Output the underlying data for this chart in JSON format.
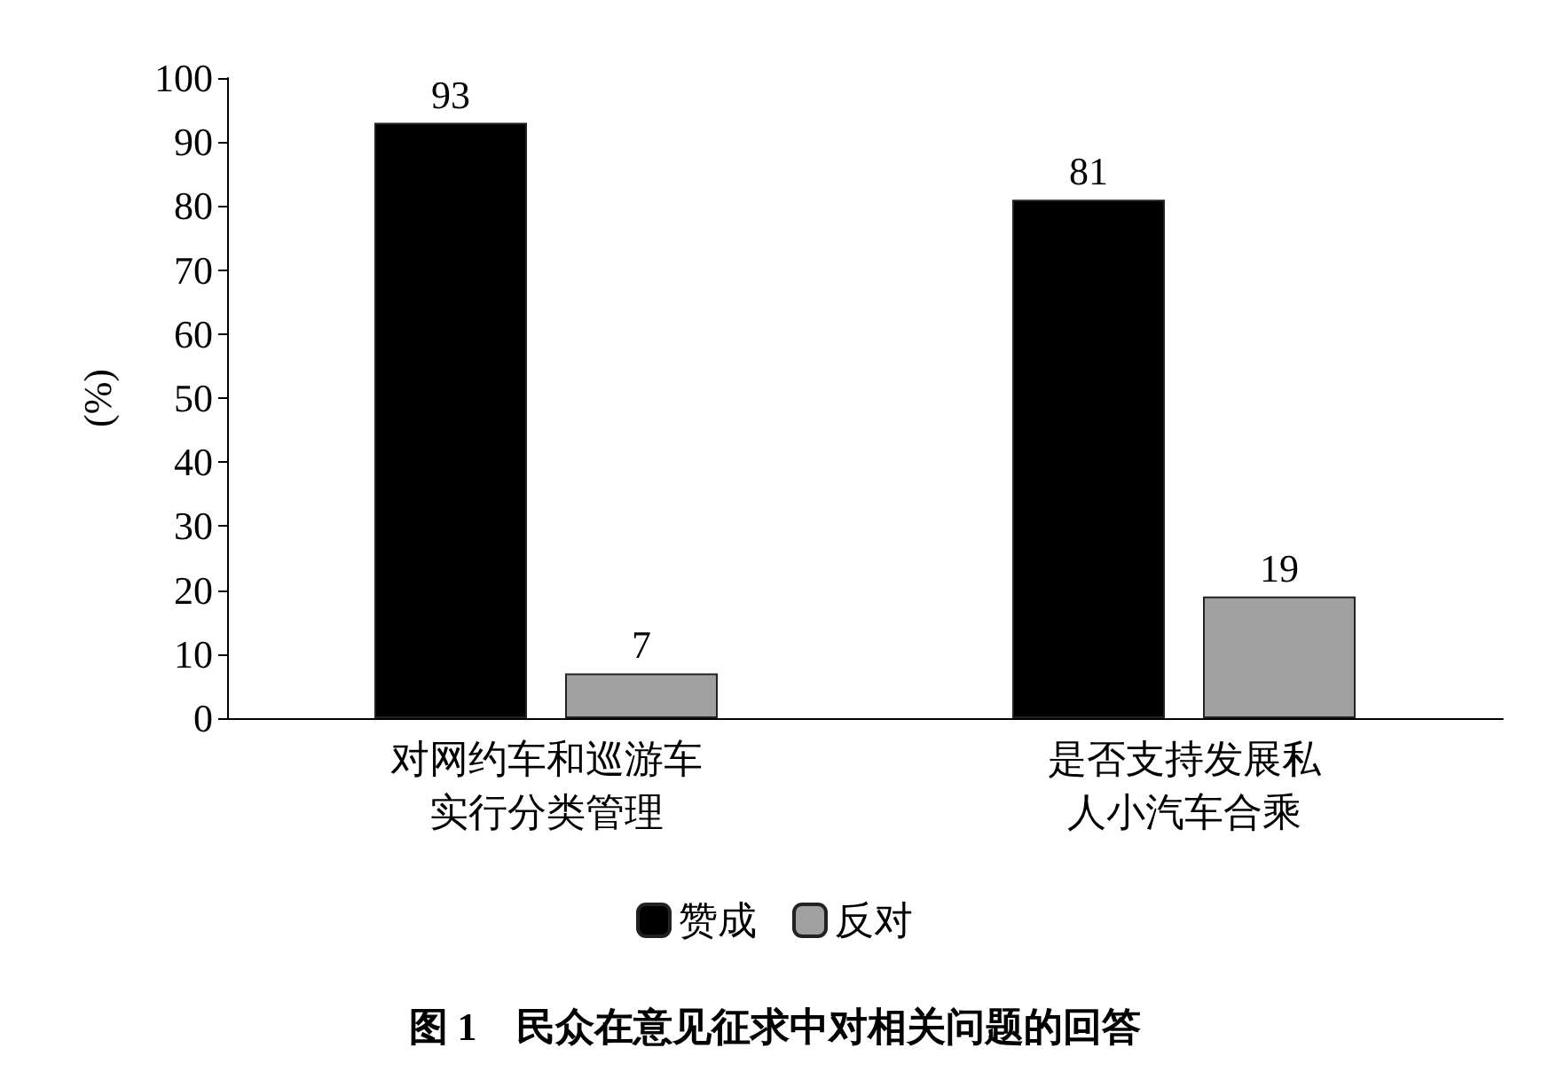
{
  "chart_data": {
    "type": "bar",
    "title": "图 1    民众在意见征求中对相关问题的回答",
    "categories": [
      "对网约车和巡游车实行分类管理",
      "是否支持发展私人小汽车合乘"
    ],
    "series": [
      {
        "name": "赞成",
        "color": "#000000",
        "values": [
          93,
          81
        ]
      },
      {
        "name": "反对",
        "color": "#a0a0a0",
        "values": [
          7,
          19
        ]
      }
    ],
    "ylabel": "(%)",
    "ylim": [
      0,
      100
    ],
    "yticks": [
      0,
      10,
      20,
      30,
      40,
      50,
      60,
      70,
      80,
      90,
      100
    ],
    "data_labels": true,
    "grid": false,
    "legend": "bottom"
  }
}
